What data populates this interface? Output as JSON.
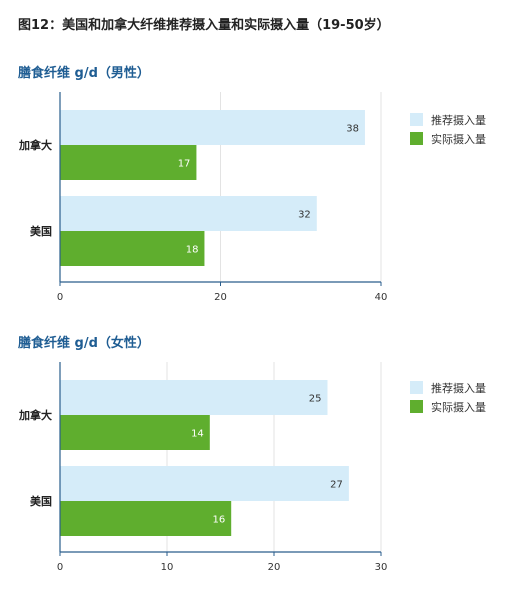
{
  "figure_title": "图12：美国和加拿大纤维推荐摄入量和实际摄入量（19-50岁）",
  "colors": {
    "recommended": "#d5ecf9",
    "actual": "#5fae2e",
    "axis": "#2a5d8c",
    "grid": "#e3e3e3"
  },
  "chart_data": [
    {
      "type": "bar",
      "orientation": "horizontal",
      "title": "膳食纤维 g/d（男性）",
      "categories": [
        "加拿大",
        "美国"
      ],
      "series": [
        {
          "name": "推荐摄入量",
          "values": [
            38,
            32
          ]
        },
        {
          "name": "实际摄入量",
          "values": [
            17,
            18
          ]
        }
      ],
      "xlim": [
        0,
        40
      ],
      "xticks": [
        0,
        20,
        40
      ],
      "grid": true,
      "legend": "right"
    },
    {
      "type": "bar",
      "orientation": "horizontal",
      "title": "膳食纤维 g/d（女性）",
      "categories": [
        "加拿大",
        "美国"
      ],
      "series": [
        {
          "name": "推荐摄入量",
          "values": [
            25,
            27
          ]
        },
        {
          "name": "实际摄入量",
          "values": [
            14,
            16
          ]
        }
      ],
      "xlim": [
        0,
        30
      ],
      "xticks": [
        0,
        10,
        20,
        30
      ],
      "grid": true,
      "legend": "right"
    }
  ]
}
